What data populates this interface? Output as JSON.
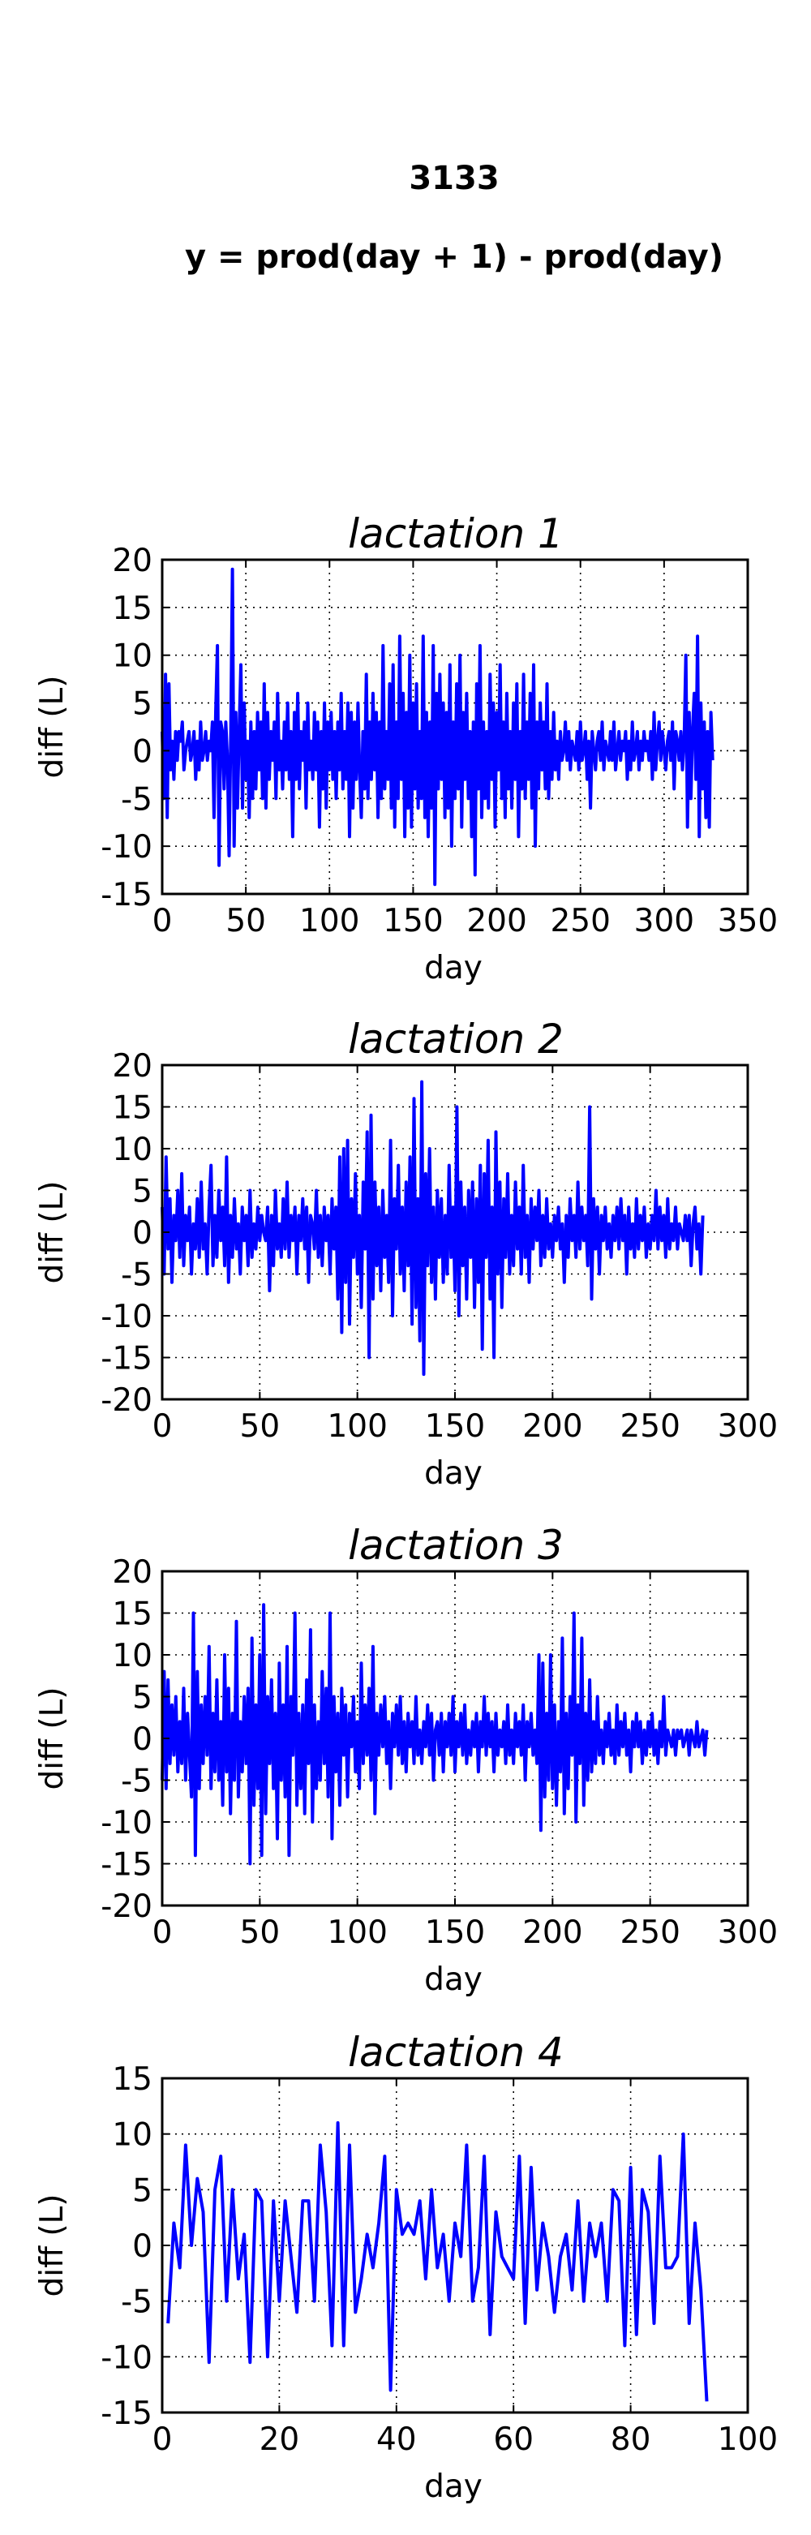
{
  "figure": {
    "title": "3133",
    "subtitle": "y = prod(day + 1) - prod(day)"
  },
  "colors": {
    "series": "#0000ff",
    "axes": "#000000",
    "background": "#ffffff"
  },
  "chart_data": [
    {
      "type": "line",
      "title": "lactation 1",
      "xlabel": "day",
      "ylabel": "diff (L)",
      "xlim": [
        0,
        350
      ],
      "ylim": [
        -15,
        20
      ],
      "xticks": [
        0,
        50,
        100,
        150,
        200,
        250,
        300,
        350
      ],
      "yticks": [
        -15,
        -10,
        -5,
        0,
        5,
        10,
        15,
        20
      ],
      "grid": true,
      "x_start": 0,
      "values": [
        2,
        -5,
        8,
        -7,
        7,
        -2,
        1,
        -3,
        2,
        -1,
        2,
        1,
        3,
        -2,
        0,
        1,
        2,
        -1,
        0,
        2,
        -3,
        1,
        -2,
        3,
        -1,
        0,
        2,
        -1,
        1,
        0,
        3,
        -7,
        4,
        11,
        -12,
        3,
        2,
        -4,
        3,
        -1,
        -11,
        2,
        19,
        -10,
        4,
        -6,
        2,
        9,
        -6,
        5,
        -3,
        1,
        -7,
        3,
        -5,
        2,
        -4,
        4,
        -2,
        3,
        -5,
        7,
        -6,
        4,
        -3,
        2,
        -1,
        3,
        -5,
        6,
        -2,
        1,
        -4,
        3,
        -2,
        5,
        -3,
        2,
        -9,
        4,
        -3,
        6,
        -4,
        2,
        -1,
        3,
        -6,
        5,
        -2,
        1,
        -3,
        4,
        -2,
        3,
        -8,
        2,
        -4,
        5,
        -6,
        3,
        -2,
        4,
        -3,
        2,
        -5,
        3,
        -2,
        6,
        -4,
        2,
        -3,
        5,
        -9,
        4,
        -6,
        3,
        -3,
        5,
        -2,
        -7,
        2,
        -4,
        8,
        -5,
        3,
        -3,
        6,
        -2,
        4,
        -7,
        3,
        -5,
        11,
        -4,
        2,
        -3,
        7,
        -6,
        9,
        -8,
        3,
        -5,
        12,
        -3,
        6,
        -9,
        4,
        -6,
        10,
        -8,
        5,
        -4,
        7,
        -6,
        2,
        -5,
        12,
        -7,
        4,
        -9,
        3,
        -6,
        11,
        -14,
        6,
        -4,
        8,
        -3,
        5,
        -7,
        4,
        -6,
        9,
        -10,
        3,
        -5,
        7,
        -4,
        10,
        -8,
        4,
        -3,
        6,
        -5,
        2,
        -9,
        3,
        -13,
        7,
        -4,
        11,
        -7,
        3,
        -5,
        2,
        -6,
        8,
        -3,
        5,
        -8,
        4,
        -2,
        9,
        -5,
        3,
        -7,
        6,
        -4,
        2,
        -6,
        5,
        -3,
        7,
        -9,
        2,
        -4,
        8,
        -5,
        3,
        -3,
        6,
        -6,
        9,
        -10,
        3,
        -4,
        5,
        -2,
        3,
        -4,
        7,
        -5,
        2,
        -3,
        4,
        -2,
        1,
        -3,
        2,
        -1,
        0,
        3,
        -1,
        2,
        -2,
        1,
        0,
        -1,
        2,
        -2,
        3,
        -1,
        0,
        2,
        -3,
        1,
        -6,
        2,
        0,
        -2,
        1,
        2,
        -1,
        3,
        -2,
        1,
        0,
        -1,
        2,
        -1,
        3,
        -2,
        0,
        2,
        -1,
        1,
        0,
        2,
        -3,
        1,
        -2,
        3,
        -1,
        0,
        2,
        -2,
        1,
        -1,
        2,
        0,
        1,
        -1,
        2,
        -3,
        4,
        -2,
        1,
        3,
        -1,
        2,
        0,
        -2,
        1,
        2,
        -1,
        3,
        -4,
        2,
        1,
        -1,
        2,
        -2,
        1,
        10,
        -8,
        4,
        -5,
        2,
        6,
        -3,
        12,
        -9,
        5,
        -4,
        3,
        -7,
        2,
        -8,
        4,
        -1
      ]
    },
    {
      "type": "line",
      "title": "lactation 2",
      "xlabel": "day",
      "ylabel": "diff (L)",
      "xlim": [
        0,
        300
      ],
      "ylim": [
        -20,
        20
      ],
      "xticks": [
        0,
        50,
        100,
        150,
        200,
        250,
        300
      ],
      "yticks": [
        -20,
        -15,
        -10,
        -5,
        0,
        5,
        10,
        15,
        20
      ],
      "grid": true,
      "x_start": 0,
      "values": [
        3,
        -5,
        9,
        -2,
        4,
        -6,
        2,
        -1,
        5,
        -3,
        7,
        -4,
        2,
        -1,
        3,
        -5,
        1,
        -2,
        4,
        -3,
        6,
        -2,
        1,
        -5,
        3,
        8,
        -4,
        2,
        -3,
        5,
        -1,
        3,
        -4,
        9,
        -6,
        2,
        -3,
        4,
        -2,
        1,
        -5,
        3,
        -1,
        2,
        -4,
        5,
        -3,
        1,
        -2,
        3,
        -1,
        2,
        0,
        -1,
        3,
        -7,
        2,
        -4,
        5,
        -2,
        1,
        -3,
        4,
        -2,
        6,
        -3,
        2,
        -1,
        3,
        -5,
        2,
        -1,
        4,
        -2,
        3,
        -6,
        2,
        1,
        -2,
        5,
        -3,
        2,
        -4,
        3,
        -1,
        2,
        -5,
        4,
        -2,
        3,
        -8,
        9,
        -12,
        10,
        -6,
        11,
        -11,
        4,
        -3,
        7,
        -5,
        2,
        -9,
        6,
        -2,
        12,
        -15,
        14,
        -8,
        6,
        -4,
        3,
        -7,
        5,
        -3,
        2,
        -6,
        11,
        -10,
        4,
        -2,
        8,
        -5,
        3,
        -7,
        6,
        -4,
        9,
        -11,
        16,
        -9,
        4,
        -13,
        18,
        -17,
        7,
        -4,
        10,
        -6,
        3,
        -8,
        5,
        -3,
        4,
        -6,
        2,
        -5,
        8,
        -3,
        3,
        -7,
        15,
        -10,
        6,
        -4,
        3,
        -8,
        5,
        -3,
        6,
        -9,
        4,
        -6,
        8,
        -14,
        7,
        -3,
        11,
        -8,
        3,
        -15,
        12,
        -5,
        6,
        -9,
        4,
        -3,
        7,
        -5,
        2,
        -4,
        6,
        -2,
        3,
        -5,
        8,
        -3,
        2,
        -6,
        4,
        -2,
        3,
        -1,
        5,
        -4,
        2,
        -3,
        4,
        -2,
        1,
        -3,
        2,
        -1,
        3,
        -2,
        1,
        -6,
        2,
        -3,
        4,
        -1,
        2,
        -3,
        6,
        -2,
        3,
        -1,
        2,
        -4,
        15,
        -8,
        4,
        -2,
        3,
        -5,
        2,
        -1,
        3,
        -2,
        1,
        -3,
        2,
        -1,
        3,
        -2,
        4,
        -1,
        2,
        -5,
        3,
        -2,
        1,
        -3,
        4,
        -2,
        2,
        -1,
        3,
        -3,
        1,
        -2,
        2,
        -1,
        5,
        -2,
        3,
        -1,
        2,
        -3,
        4,
        -2,
        1,
        -1,
        3,
        -2,
        1,
        0,
        -1,
        2,
        -1,
        2,
        -4,
        1,
        3,
        -2,
        1,
        -5,
        2
      ]
    },
    {
      "type": "line",
      "title": "lactation 3",
      "xlabel": "day",
      "ylabel": "diff (L)",
      "xlim": [
        0,
        300
      ],
      "ylim": [
        -20,
        20
      ],
      "xticks": [
        0,
        50,
        100,
        150,
        200,
        250,
        300
      ],
      "yticks": [
        -20,
        -15,
        -10,
        -5,
        0,
        5,
        10,
        15,
        20
      ],
      "grid": true,
      "x_start": 0,
      "values": [
        -5,
        8,
        -6,
        7,
        -3,
        4,
        -2,
        5,
        -4,
        2,
        -3,
        6,
        -5,
        3,
        -2,
        -7,
        15,
        -14,
        8,
        -6,
        4,
        -3,
        5,
        -2,
        11,
        -6,
        3,
        -4,
        7,
        -5,
        2,
        -8,
        10,
        -4,
        6,
        -9,
        3,
        -5,
        14,
        -7,
        2,
        -4,
        5,
        -3,
        6,
        -15,
        12,
        -8,
        4,
        -6,
        10,
        -14,
        16,
        -9,
        5,
        -3,
        7,
        -6,
        3,
        -12,
        9,
        -5,
        4,
        -7,
        11,
        -14,
        5,
        -2,
        15,
        -8,
        3,
        -6,
        4,
        -9,
        7,
        -3,
        13,
        -10,
        4,
        -6,
        2,
        -5,
        8,
        -3,
        6,
        -7,
        15,
        -12,
        5,
        -4,
        3,
        -8,
        6,
        -2,
        4,
        -7,
        3,
        -1,
        5,
        -4,
        2,
        -6,
        9,
        -3,
        4,
        -2,
        6,
        -5,
        11,
        -9,
        3,
        -2,
        4,
        -1,
        5,
        -3,
        2,
        -6,
        3,
        -1,
        4,
        -2,
        5,
        -3,
        2,
        -4,
        3,
        -1,
        2,
        -3,
        5,
        -2,
        1,
        -3,
        2,
        -1,
        4,
        -2,
        3,
        -5,
        1,
        2,
        -2,
        3,
        -4,
        2,
        -1,
        3,
        -2,
        5,
        -4,
        2,
        -1,
        3,
        -2,
        4,
        -3,
        1,
        -2,
        2,
        -1,
        3,
        -4,
        2,
        -1,
        5,
        -2,
        3,
        -1,
        2,
        -4,
        3,
        -2,
        1,
        -1,
        2,
        -3,
        4,
        -2,
        1,
        -3,
        3,
        -1,
        2,
        -2,
        4,
        -5,
        2,
        -1,
        3,
        -2,
        1,
        -3,
        10,
        -11,
        9,
        -7,
        3,
        -5,
        10,
        -6,
        4,
        -8,
        2,
        -4,
        12,
        -9,
        3,
        -6,
        5,
        -2,
        15,
        -10,
        4,
        -3,
        12,
        -8,
        3,
        -5,
        7,
        -4,
        2,
        -3,
        5,
        -2,
        1,
        -3,
        2,
        -1,
        3,
        -2,
        1,
        -3,
        4,
        -2,
        2,
        -1,
        3,
        -2,
        1,
        -4,
        2,
        -1,
        3,
        -1,
        2,
        -3,
        1,
        -2,
        2,
        -1,
        3,
        -2,
        1,
        -3,
        2,
        -1,
        5,
        -2,
        1,
        0,
        -1,
        1,
        -2,
        1,
        0,
        1,
        -1,
        0,
        1,
        -2,
        1,
        0,
        -1,
        2,
        -1,
        0,
        1,
        -2,
        1
      ]
    },
    {
      "type": "line",
      "title": "lactation 4",
      "xlabel": "day",
      "ylabel": "diff (L)",
      "xlim": [
        0,
        100
      ],
      "ylim": [
        -15,
        15
      ],
      "xticks": [
        0,
        20,
        40,
        60,
        80,
        100
      ],
      "yticks": [
        -15,
        -10,
        -5,
        0,
        5,
        10,
        15
      ],
      "grid": true,
      "x_start": 1,
      "values": [
        -7,
        2,
        -2,
        9,
        0,
        6,
        3,
        -10.5,
        5,
        8,
        -5,
        5,
        -3,
        1,
        -10.5,
        5,
        4,
        -10,
        4,
        -5,
        4,
        -1,
        -6,
        4,
        4,
        -5,
        9,
        3,
        -9,
        11,
        -9,
        9,
        -6,
        -3,
        1,
        -2,
        2,
        8,
        -13,
        5,
        1,
        2,
        1,
        4,
        -3,
        5,
        -2,
        1,
        -5,
        2,
        -1,
        9,
        -5,
        -2,
        8,
        -8,
        3,
        -1,
        -2,
        -3,
        8,
        -7,
        7,
        -4,
        2,
        -1,
        -6,
        -1,
        1,
        -4,
        4,
        -5,
        2,
        -1,
        2,
        -5,
        5,
        4,
        -9,
        7,
        -8,
        5,
        3,
        -7,
        8,
        -2,
        -2,
        -1,
        10,
        -7,
        2,
        -4,
        -14
      ]
    }
  ]
}
